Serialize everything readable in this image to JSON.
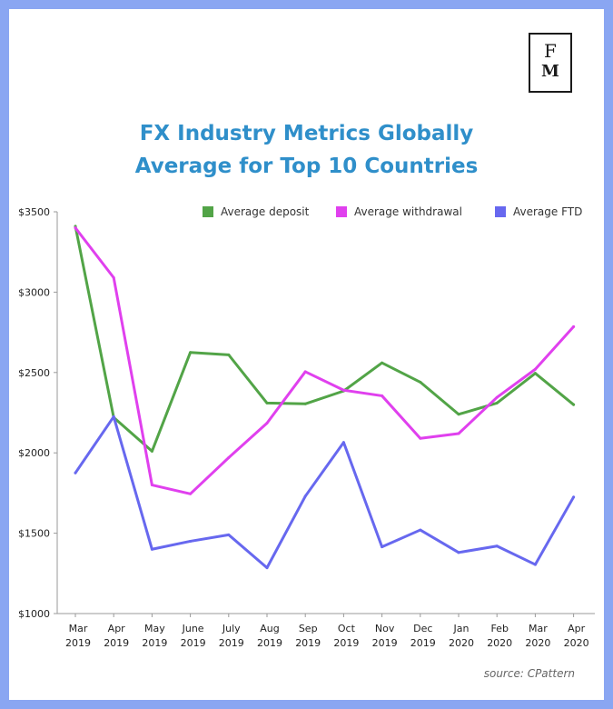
{
  "logo": {
    "line1": "F",
    "line2": "M"
  },
  "chart_data": {
    "type": "line",
    "title_line1": "FX Industry Metrics Globally",
    "title_line2": "Average for Top 10 Countries",
    "categories": [
      [
        "Mar",
        "2019"
      ],
      [
        "Apr",
        "2019"
      ],
      [
        "May",
        "2019"
      ],
      [
        "June",
        "2019"
      ],
      [
        "July",
        "2019"
      ],
      [
        "Aug",
        "2019"
      ],
      [
        "Sep",
        "2019"
      ],
      [
        "Oct",
        "2019"
      ],
      [
        "Nov",
        "2019"
      ],
      [
        "Dec",
        "2019"
      ],
      [
        "Jan",
        "2020"
      ],
      [
        "Feb",
        "2020"
      ],
      [
        "Mar",
        "2020"
      ],
      [
        "Apr",
        "2020"
      ]
    ],
    "ylim": [
      1000,
      3500
    ],
    "yticks": [
      1000,
      1500,
      2000,
      2500,
      3000,
      3500
    ],
    "ytick_labels": [
      "$1000",
      "$1500",
      "$2000",
      "$2500",
      "$3000",
      "$3500"
    ],
    "grid": false,
    "legend_position": "top-right",
    "series": [
      {
        "name": "Average deposit",
        "color": "#52a447",
        "values": [
          3410,
          2220,
          2010,
          2625,
          2610,
          2310,
          2305,
          2385,
          2560,
          2440,
          2240,
          2310,
          2495,
          2300
        ]
      },
      {
        "name": "Average withdrawal",
        "color": "#e040ee",
        "values": [
          3400,
          3090,
          1800,
          1745,
          1970,
          2185,
          2505,
          2390,
          2355,
          2090,
          2120,
          2345,
          2520,
          2785
        ]
      },
      {
        "name": "Average FTD",
        "color": "#6768ef",
        "values": [
          1875,
          2225,
          1400,
          1450,
          1490,
          1285,
          1730,
          2065,
          1415,
          1520,
          1380,
          1420,
          1305,
          1725
        ]
      }
    ]
  },
  "source": "source: CPattern"
}
